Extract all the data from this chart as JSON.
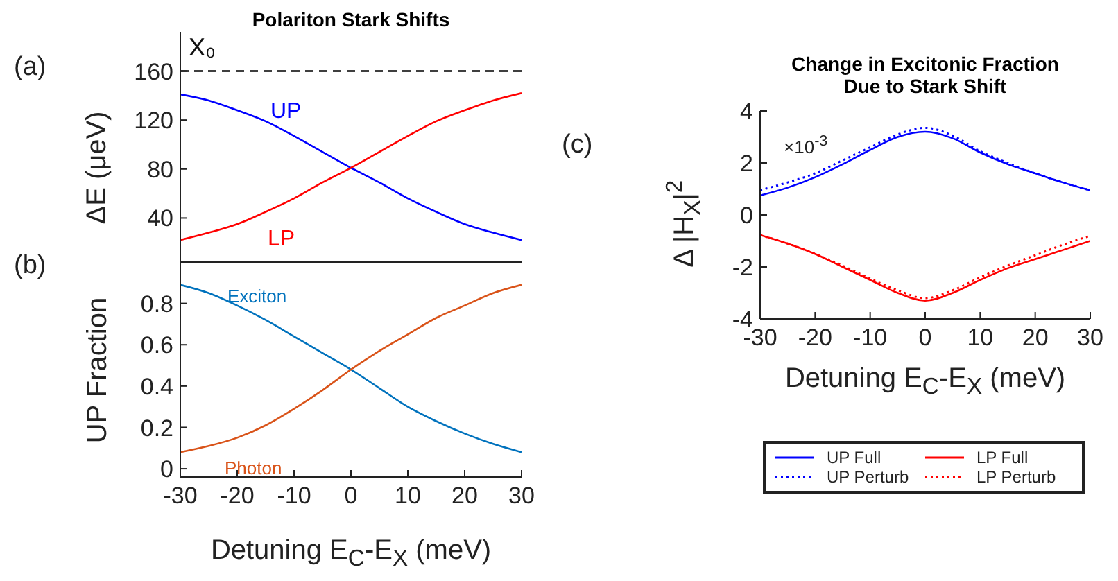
{
  "chart_data": [
    {
      "type": "line",
      "title": "Polariton Stark Shifts",
      "ylabel": "ΔE (μeV)",
      "annotations": [
        "(a)"
      ],
      "x": [
        -30,
        -25,
        -20,
        -15,
        -10,
        -5,
        0,
        5,
        10,
        15,
        20,
        25,
        30
      ],
      "series": [
        {
          "name": "UP",
          "color": "#0000ff",
          "values": [
            141,
            136,
            128,
            119,
            107,
            94,
            81,
            69,
            56,
            45,
            35,
            28,
            22
          ]
        },
        {
          "name": "LP",
          "color": "#ff0000",
          "values": [
            22,
            28,
            35,
            45,
            56,
            69,
            81,
            94,
            107,
            119,
            128,
            136,
            142
          ]
        }
      ],
      "xlim": [
        -30,
        30
      ],
      "xticks": [
        -30,
        -20,
        -10,
        0,
        10,
        20,
        30
      ],
      "ylim": [
        4,
        192
      ],
      "yticks": [
        40,
        80,
        120,
        160
      ],
      "tick_labels": "y",
      "marker": "none",
      "ref_lines": [
        {
          "axis": "y",
          "value": 160,
          "label": "X₀",
          "color": "#000000",
          "line_style": "dashed"
        }
      ]
    },
    {
      "type": "line",
      "ylabel": "UP Fraction",
      "xlabel": "Detuning E$_{C}$-E$_{X}$ (meV)",
      "annotations": [
        "(b)"
      ],
      "x": [
        -30,
        -25,
        -20,
        -15,
        -10,
        -5,
        0,
        5,
        10,
        15,
        20,
        25,
        30
      ],
      "series": [
        {
          "name": "Exciton",
          "color": "#0072bd",
          "values": [
            0.89,
            0.85,
            0.79,
            0.72,
            0.64,
            0.56,
            0.48,
            0.39,
            0.3,
            0.23,
            0.17,
            0.12,
            0.08
          ]
        },
        {
          "name": "Photon",
          "color": "#d95319",
          "values": [
            0.08,
            0.11,
            0.15,
            0.21,
            0.29,
            0.38,
            0.48,
            0.57,
            0.65,
            0.73,
            0.79,
            0.85,
            0.89
          ]
        }
      ],
      "xlim": [
        -30,
        30
      ],
      "xticks": [
        -30,
        -20,
        -10,
        0,
        10,
        20,
        30
      ],
      "ylim": [
        -0.04,
        1.0
      ],
      "yticks": [
        0,
        0.2,
        0.4,
        0.6,
        0.8
      ],
      "marker": "none"
    },
    {
      "type": "line",
      "title": "Change in Excitonic Fraction\nDue to Stark Shift",
      "ylabel": "Δ |H$_{X}$|$^{2}$",
      "xlabel": "Detuning E$_{C}$-E$_{X}$ (meV)",
      "annotations": [
        "(c)",
        "×10$^{-3}$"
      ],
      "x": [
        -30,
        -25,
        -20,
        -15,
        -10,
        -5,
        0,
        5,
        10,
        15,
        20,
        25,
        30
      ],
      "series": [
        {
          "name": "UP Full",
          "color": "#0000ff",
          "line_style": "solid",
          "values": [
            0.75,
            1.05,
            1.45,
            1.95,
            2.5,
            3.0,
            3.2,
            2.95,
            2.4,
            1.95,
            1.6,
            1.25,
            0.95
          ]
        },
        {
          "name": "UP Perturb",
          "color": "#0000ff",
          "line_style": "dotted",
          "values": [
            0.95,
            1.25,
            1.6,
            2.1,
            2.6,
            3.1,
            3.35,
            3.05,
            2.45,
            2.0,
            1.6,
            1.25,
            0.95
          ]
        },
        {
          "name": "LP Full",
          "color": "#ff0000",
          "line_style": "solid",
          "values": [
            -0.77,
            -1.1,
            -1.5,
            -2.0,
            -2.5,
            -3.0,
            -3.3,
            -3.0,
            -2.5,
            -2.05,
            -1.7,
            -1.35,
            -1.0
          ]
        },
        {
          "name": "LP Perturb",
          "color": "#ff0000",
          "line_style": "dotted",
          "values": [
            -0.77,
            -1.1,
            -1.5,
            -1.95,
            -2.45,
            -2.9,
            -3.2,
            -2.9,
            -2.4,
            -1.95,
            -1.55,
            -1.15,
            -0.8
          ]
        }
      ],
      "xlim": [
        -30,
        30
      ],
      "xticks": [
        -30,
        -20,
        -10,
        0,
        10,
        20,
        30
      ],
      "ylim": [
        -4,
        4
      ],
      "yticks": [
        -4,
        -2,
        0,
        2,
        4
      ],
      "legend": "bottom",
      "marker": "none"
    }
  ]
}
